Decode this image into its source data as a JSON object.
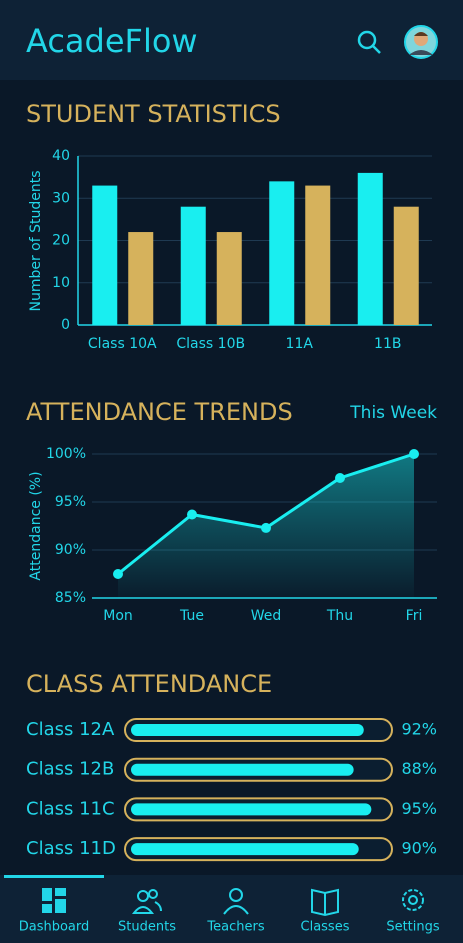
{
  "header": {
    "title": "AcadeFlow"
  },
  "student_statistics": {
    "title": "STUDENT STATISTICS",
    "chart": {
      "type": "bar",
      "y_label": "Number of Students",
      "categories": [
        "Class 10A",
        "Class 10B",
        "11A",
        "11B"
      ],
      "series": [
        {
          "color": "#19eef0",
          "values": [
            33,
            28,
            34,
            36
          ]
        },
        {
          "color": "#d6b25c",
          "values": [
            22,
            22,
            33,
            28
          ]
        }
      ],
      "ylim": [
        0,
        40
      ],
      "yticks": [
        0,
        10,
        20,
        30,
        40
      ],
      "grid": true
    }
  },
  "attendance_trends": {
    "title": "ATTENDANCE TRENDS",
    "period": "This Week",
    "chart": {
      "type": "line",
      "y_label": "Attendance (%)",
      "color": "#19eef0",
      "categories": [
        "Mon",
        "Tue",
        "Wed",
        "Thu",
        "Fri"
      ],
      "values": [
        87.5,
        93.7,
        92.3,
        97.5,
        100
      ],
      "ylim": [
        85,
        100
      ],
      "yticks": [
        {
          "value": 85,
          "label": "85%"
        },
        {
          "value": 90,
          "label": "90%"
        },
        {
          "value": 95,
          "label": "95%"
        },
        {
          "value": 100,
          "label": "100%"
        }
      ],
      "grid": true
    }
  },
  "class_attendance": {
    "title": "CLASS ATTENDANCE",
    "chart": {
      "type": "progress",
      "color": "#19eef0",
      "categories": [
        "Class 12A",
        "Class 12B",
        "Class 11C",
        "Class 11D"
      ],
      "values": [
        92,
        88,
        95,
        90
      ],
      "value_labels": [
        "92%",
        "88%",
        "95%",
        "90%"
      ],
      "xlim": [
        0,
        100
      ]
    }
  },
  "nav": {
    "items": [
      "Dashboard",
      "Students",
      "Teachers",
      "Classes",
      "Settings"
    ]
  }
}
